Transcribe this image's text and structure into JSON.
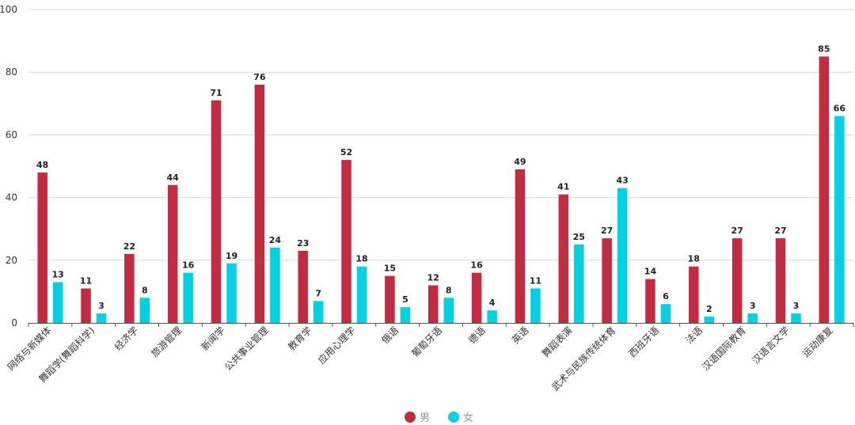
{
  "chart_data": {
    "type": "bar",
    "title": "",
    "xlabel": "",
    "ylabel": "",
    "ylim": [
      0,
      100
    ],
    "yticks": [
      0,
      20,
      40,
      60,
      80,
      100
    ],
    "grid": true,
    "legend_position": "bottom-center",
    "categories": [
      "网络与新媒体",
      "舞蹈学(舞蹈科学)",
      "经济学",
      "旅游管理",
      "新闻学",
      "公共事业管理",
      "教育学",
      "应用心理学",
      "俄语",
      "葡萄牙语",
      "德语",
      "英语",
      "舞蹈表演",
      "武术与民族传统体育",
      "西班牙语",
      "法语",
      "汉语国际教育",
      "汉语言文学",
      "运动康复"
    ],
    "series": [
      {
        "name": "男",
        "color": "#c42b3e",
        "values": [
          48,
          11,
          22,
          44,
          71,
          76,
          23,
          52,
          15,
          12,
          16,
          49,
          41,
          27,
          14,
          18,
          27,
          27,
          85
        ]
      },
      {
        "name": "女",
        "color": "#00d2e6",
        "values": [
          13,
          3,
          8,
          16,
          19,
          24,
          7,
          18,
          5,
          8,
          4,
          11,
          25,
          43,
          6,
          2,
          3,
          3,
          66
        ]
      }
    ]
  }
}
